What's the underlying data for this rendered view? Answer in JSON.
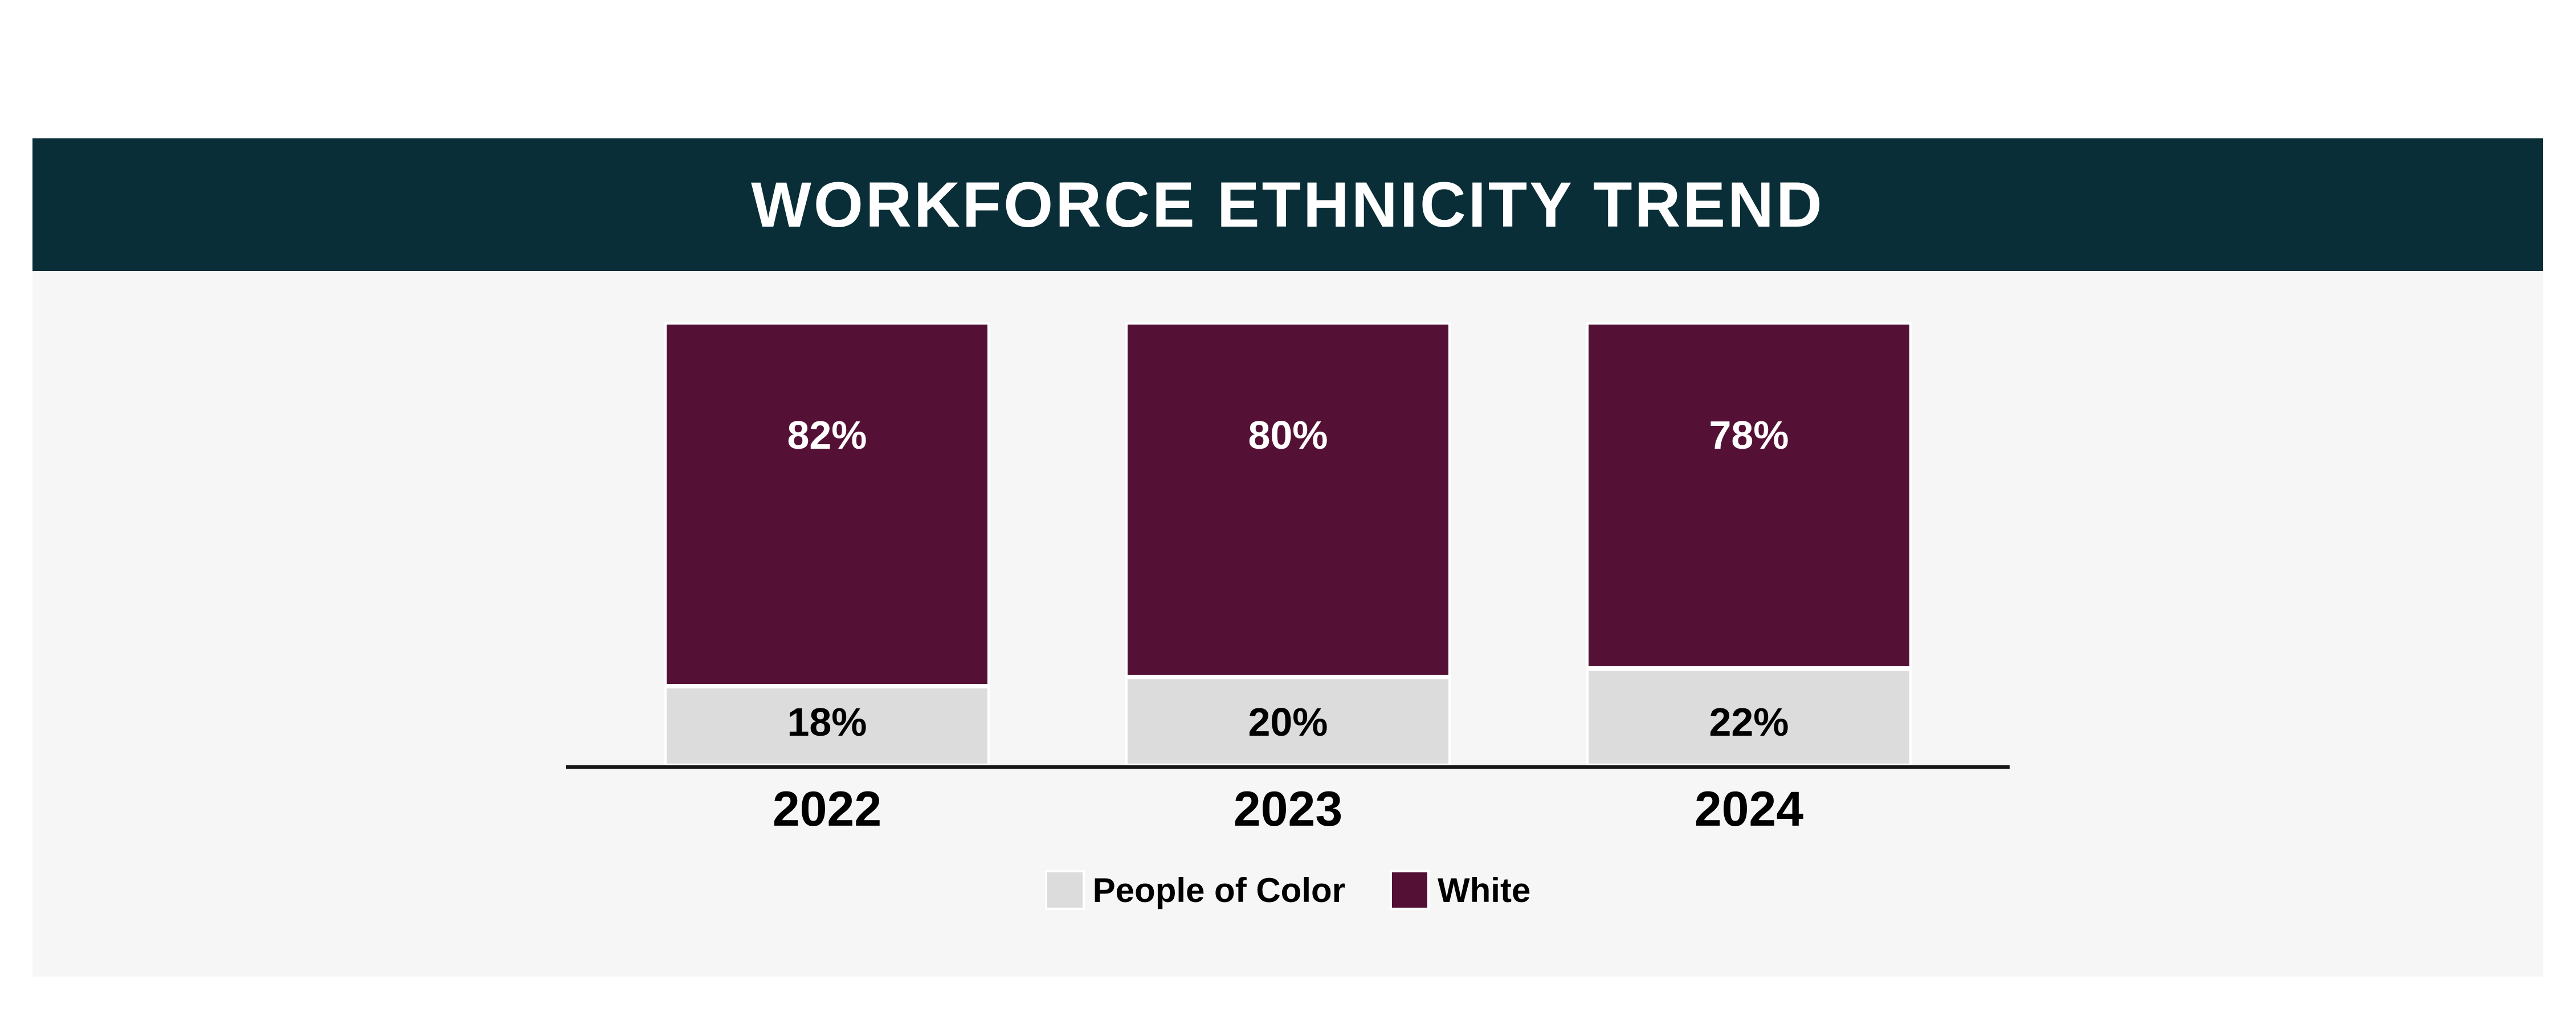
{
  "header": {
    "title": "WORKFORCE ETHNICITY TREND",
    "background": "#0a2e37",
    "text_color": "#ffffff"
  },
  "card": {
    "content_background": "#f6f6f6",
    "page_background": "#ffffff"
  },
  "chart_data": {
    "type": "bar",
    "variant": "stacked-100-percent-column",
    "title": "WORKFORCE ETHNICITY TREND",
    "categories": [
      "2022",
      "2023",
      "2024"
    ],
    "series": [
      {
        "name": "White",
        "color": "#541135",
        "label_color": "#ffffff",
        "stack_position": "top",
        "values": [
          82,
          80,
          78
        ],
        "labels": [
          "82%",
          "80%",
          "78%"
        ]
      },
      {
        "name": "People of Color",
        "color": "#dcdcdd",
        "label_color": "#000000",
        "stack_position": "bottom",
        "values": [
          18,
          20,
          22
        ],
        "labels": [
          "18%",
          "20%",
          "22%"
        ]
      }
    ],
    "ylim": [
      0,
      100
    ],
    "grid": false,
    "y_axis_visible": false,
    "baseline_color": "#151515",
    "category_label_color": "#000000",
    "segment_border_color": "#ffffff",
    "legend_position": "bottom"
  },
  "legend": {
    "items": [
      {
        "label": "People of Color",
        "color": "#dcdcdd"
      },
      {
        "label": "White",
        "color": "#541135"
      }
    ]
  }
}
